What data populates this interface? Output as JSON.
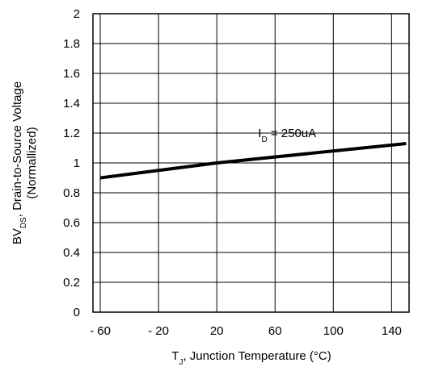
{
  "chart_data": {
    "type": "line",
    "xlabel": "T",
    "xlabel_sub": "J",
    "xlabel_rest": ", Junction Temperature (°C)",
    "ylabel_line1_pre": "BV",
    "ylabel_line1_sub": "DS",
    "ylabel_line1_rest": ", Drain-to-Source Voltage",
    "ylabel_line2": "(Normallized)",
    "xlim": [
      -65,
      152
    ],
    "ylim": [
      0,
      2
    ],
    "xticks": [
      -60,
      -20,
      20,
      60,
      100,
      140
    ],
    "xtick_labels": [
      "- 60",
      "- 20",
      "20",
      "60",
      "100",
      "140"
    ],
    "yticks": [
      0,
      0.2,
      0.4,
      0.6,
      0.8,
      1,
      1.2,
      1.4,
      1.6,
      1.8,
      2
    ],
    "ytick_labels": [
      "0",
      "0.2",
      "0.4",
      "0.6",
      "0.8",
      "1",
      "1.2",
      "1.4",
      "1.6",
      "1.8",
      "2"
    ],
    "grid": true,
    "series": [
      {
        "x": [
          -60,
          20,
          150
        ],
        "y": [
          0.9,
          1.0,
          1.13
        ]
      }
    ],
    "annotation": {
      "pre": "I",
      "sub": "D",
      "rest": " = 250uA",
      "x": 60,
      "y": 1.19
    },
    "colors": {
      "line": "#000000",
      "grid": "#000000"
    }
  }
}
